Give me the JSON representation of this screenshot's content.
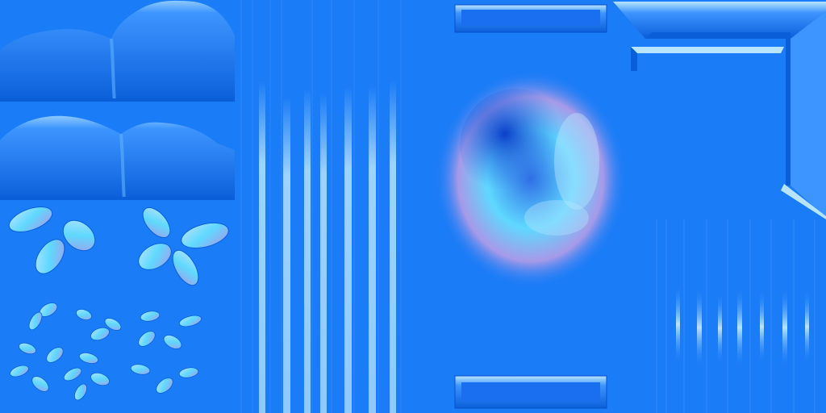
{
  "colors": {
    "base": "#1a7cf7",
    "base_light": "#3d95ff",
    "base_dark": "#0a5fd9",
    "highlight": "#8ec9ff",
    "glow": "#b8e4ff",
    "lavender": "#a79ae8",
    "cyan": "#5fd8ff"
  },
  "regions": [
    {
      "name": "hills-top-tile",
      "icon": "hills-icon"
    },
    {
      "name": "hills-bottom-tile",
      "icon": "hills-icon"
    },
    {
      "name": "large-leaves-tile",
      "icon": "leaf-cluster-icon"
    },
    {
      "name": "small-leaves-tile",
      "icon": "leaf-cluster-icon"
    },
    {
      "name": "vertical-grass-strip",
      "icon": "vertical-stripes-icon"
    },
    {
      "name": "rock-crater-tile",
      "icon": "rock-icon"
    },
    {
      "name": "bevel-frame-tile",
      "icon": "bevel-frame-icon"
    },
    {
      "name": "thin-stripes-tile",
      "icon": "vertical-stripes-icon"
    }
  ]
}
